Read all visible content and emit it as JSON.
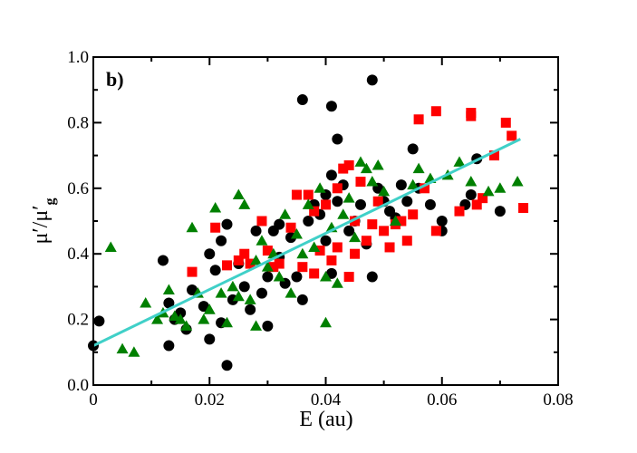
{
  "chart_data": {
    "type": "scatter",
    "panel_label": "b)",
    "xlabel": "E (au)",
    "ylabel": "μ′/μ′",
    "ylabel_sub": "g",
    "xlim": [
      0,
      0.08
    ],
    "ylim": [
      0,
      1.0
    ],
    "x_ticks": [
      0,
      0.02,
      0.04,
      0.06,
      0.08
    ],
    "x_tick_labels": [
      "0",
      "0.02",
      "0.04",
      "0.06",
      "0.08"
    ],
    "y_ticks": [
      0.0,
      0.2,
      0.4,
      0.6,
      0.8,
      1.0
    ],
    "y_tick_labels": [
      "0.0",
      "0.2",
      "0.4",
      "0.6",
      "0.8",
      "1.0"
    ],
    "grid": false,
    "colors": {
      "black": "#000000",
      "red": "#ff0000",
      "green": "#008000",
      "fit": "#40d0c8"
    },
    "fit_line": {
      "name": "linear fit",
      "x": [
        0,
        0.0735
      ],
      "y": [
        0.12,
        0.75
      ]
    },
    "series": [
      {
        "name": "black circles",
        "marker": "circle",
        "color": "#000000",
        "points": [
          [
            0.0,
            0.12
          ],
          [
            0.001,
            0.195
          ],
          [
            0.012,
            0.38
          ],
          [
            0.013,
            0.25
          ],
          [
            0.013,
            0.12
          ],
          [
            0.014,
            0.2
          ],
          [
            0.015,
            0.22
          ],
          [
            0.016,
            0.17
          ],
          [
            0.017,
            0.29
          ],
          [
            0.019,
            0.24
          ],
          [
            0.02,
            0.4
          ],
          [
            0.02,
            0.14
          ],
          [
            0.021,
            0.35
          ],
          [
            0.022,
            0.44
          ],
          [
            0.022,
            0.19
          ],
          [
            0.023,
            0.49
          ],
          [
            0.023,
            0.06
          ],
          [
            0.024,
            0.26
          ],
          [
            0.025,
            0.37
          ],
          [
            0.026,
            0.3
          ],
          [
            0.027,
            0.23
          ],
          [
            0.028,
            0.47
          ],
          [
            0.029,
            0.28
          ],
          [
            0.03,
            0.33
          ],
          [
            0.03,
            0.18
          ],
          [
            0.031,
            0.47
          ],
          [
            0.032,
            0.49
          ],
          [
            0.032,
            0.39
          ],
          [
            0.033,
            0.31
          ],
          [
            0.034,
            0.45
          ],
          [
            0.035,
            0.33
          ],
          [
            0.036,
            0.87
          ],
          [
            0.036,
            0.26
          ],
          [
            0.037,
            0.5
          ],
          [
            0.038,
            0.55
          ],
          [
            0.039,
            0.52
          ],
          [
            0.04,
            0.44
          ],
          [
            0.04,
            0.58
          ],
          [
            0.041,
            0.85
          ],
          [
            0.041,
            0.64
          ],
          [
            0.041,
            0.34
          ],
          [
            0.042,
            0.75
          ],
          [
            0.042,
            0.56
          ],
          [
            0.043,
            0.61
          ],
          [
            0.044,
            0.47
          ],
          [
            0.045,
            0.5
          ],
          [
            0.046,
            0.55
          ],
          [
            0.047,
            0.43
          ],
          [
            0.048,
            0.93
          ],
          [
            0.048,
            0.33
          ],
          [
            0.049,
            0.6
          ],
          [
            0.05,
            0.56
          ],
          [
            0.051,
            0.53
          ],
          [
            0.052,
            0.51
          ],
          [
            0.053,
            0.61
          ],
          [
            0.054,
            0.56
          ],
          [
            0.055,
            0.72
          ],
          [
            0.056,
            0.6
          ],
          [
            0.058,
            0.55
          ],
          [
            0.06,
            0.5
          ],
          [
            0.06,
            0.47
          ],
          [
            0.064,
            0.55
          ],
          [
            0.065,
            0.58
          ],
          [
            0.066,
            0.69
          ],
          [
            0.07,
            0.53
          ]
        ]
      },
      {
        "name": "red squares",
        "marker": "square",
        "color": "#ff0000",
        "points": [
          [
            0.017,
            0.345
          ],
          [
            0.021,
            0.48
          ],
          [
            0.023,
            0.365
          ],
          [
            0.025,
            0.38
          ],
          [
            0.026,
            0.4
          ],
          [
            0.027,
            0.37
          ],
          [
            0.029,
            0.5
          ],
          [
            0.03,
            0.41
          ],
          [
            0.031,
            0.36
          ],
          [
            0.032,
            0.37
          ],
          [
            0.034,
            0.48
          ],
          [
            0.035,
            0.58
          ],
          [
            0.036,
            0.36
          ],
          [
            0.037,
            0.58
          ],
          [
            0.038,
            0.53
          ],
          [
            0.038,
            0.34
          ],
          [
            0.039,
            0.41
          ],
          [
            0.04,
            0.55
          ],
          [
            0.041,
            0.38
          ],
          [
            0.042,
            0.42
          ],
          [
            0.042,
            0.6
          ],
          [
            0.043,
            0.66
          ],
          [
            0.044,
            0.67
          ],
          [
            0.044,
            0.33
          ],
          [
            0.045,
            0.5
          ],
          [
            0.045,
            0.4
          ],
          [
            0.046,
            0.62
          ],
          [
            0.047,
            0.44
          ],
          [
            0.048,
            0.49
          ],
          [
            0.049,
            0.56
          ],
          [
            0.05,
            0.47
          ],
          [
            0.051,
            0.42
          ],
          [
            0.052,
            0.49
          ],
          [
            0.053,
            0.5
          ],
          [
            0.054,
            0.44
          ],
          [
            0.055,
            0.52
          ],
          [
            0.056,
            0.81
          ],
          [
            0.057,
            0.6
          ],
          [
            0.059,
            0.835
          ],
          [
            0.059,
            0.47
          ],
          [
            0.063,
            0.53
          ],
          [
            0.065,
            0.83
          ],
          [
            0.065,
            0.82
          ],
          [
            0.066,
            0.55
          ],
          [
            0.067,
            0.57
          ],
          [
            0.069,
            0.7
          ],
          [
            0.071,
            0.8
          ],
          [
            0.072,
            0.76
          ],
          [
            0.074,
            0.54
          ]
        ]
      },
      {
        "name": "green triangles",
        "marker": "triangle",
        "color": "#008000",
        "points": [
          [
            0.003,
            0.42
          ],
          [
            0.005,
            0.11
          ],
          [
            0.007,
            0.1
          ],
          [
            0.009,
            0.25
          ],
          [
            0.011,
            0.2
          ],
          [
            0.012,
            0.22
          ],
          [
            0.013,
            0.29
          ],
          [
            0.014,
            0.21
          ],
          [
            0.015,
            0.2
          ],
          [
            0.016,
            0.18
          ],
          [
            0.017,
            0.48
          ],
          [
            0.018,
            0.28
          ],
          [
            0.019,
            0.2
          ],
          [
            0.02,
            0.23
          ],
          [
            0.021,
            0.54
          ],
          [
            0.022,
            0.28
          ],
          [
            0.023,
            0.19
          ],
          [
            0.024,
            0.3
          ],
          [
            0.025,
            0.58
          ],
          [
            0.025,
            0.27
          ],
          [
            0.026,
            0.55
          ],
          [
            0.027,
            0.26
          ],
          [
            0.028,
            0.38
          ],
          [
            0.028,
            0.18
          ],
          [
            0.029,
            0.44
          ],
          [
            0.03,
            0.36
          ],
          [
            0.031,
            0.4
          ],
          [
            0.032,
            0.33
          ],
          [
            0.033,
            0.52
          ],
          [
            0.034,
            0.28
          ],
          [
            0.035,
            0.46
          ],
          [
            0.036,
            0.4
          ],
          [
            0.037,
            0.55
          ],
          [
            0.038,
            0.42
          ],
          [
            0.039,
            0.6
          ],
          [
            0.04,
            0.33
          ],
          [
            0.04,
            0.19
          ],
          [
            0.041,
            0.48
          ],
          [
            0.042,
            0.31
          ],
          [
            0.043,
            0.52
          ],
          [
            0.044,
            0.57
          ],
          [
            0.045,
            0.45
          ],
          [
            0.046,
            0.68
          ],
          [
            0.047,
            0.66
          ],
          [
            0.048,
            0.62
          ],
          [
            0.049,
            0.67
          ],
          [
            0.05,
            0.59
          ],
          [
            0.052,
            0.5
          ],
          [
            0.055,
            0.61
          ],
          [
            0.056,
            0.66
          ],
          [
            0.058,
            0.63
          ],
          [
            0.061,
            0.64
          ],
          [
            0.063,
            0.68
          ],
          [
            0.065,
            0.62
          ],
          [
            0.068,
            0.59
          ],
          [
            0.07,
            0.6
          ],
          [
            0.073,
            0.62
          ]
        ]
      }
    ]
  }
}
